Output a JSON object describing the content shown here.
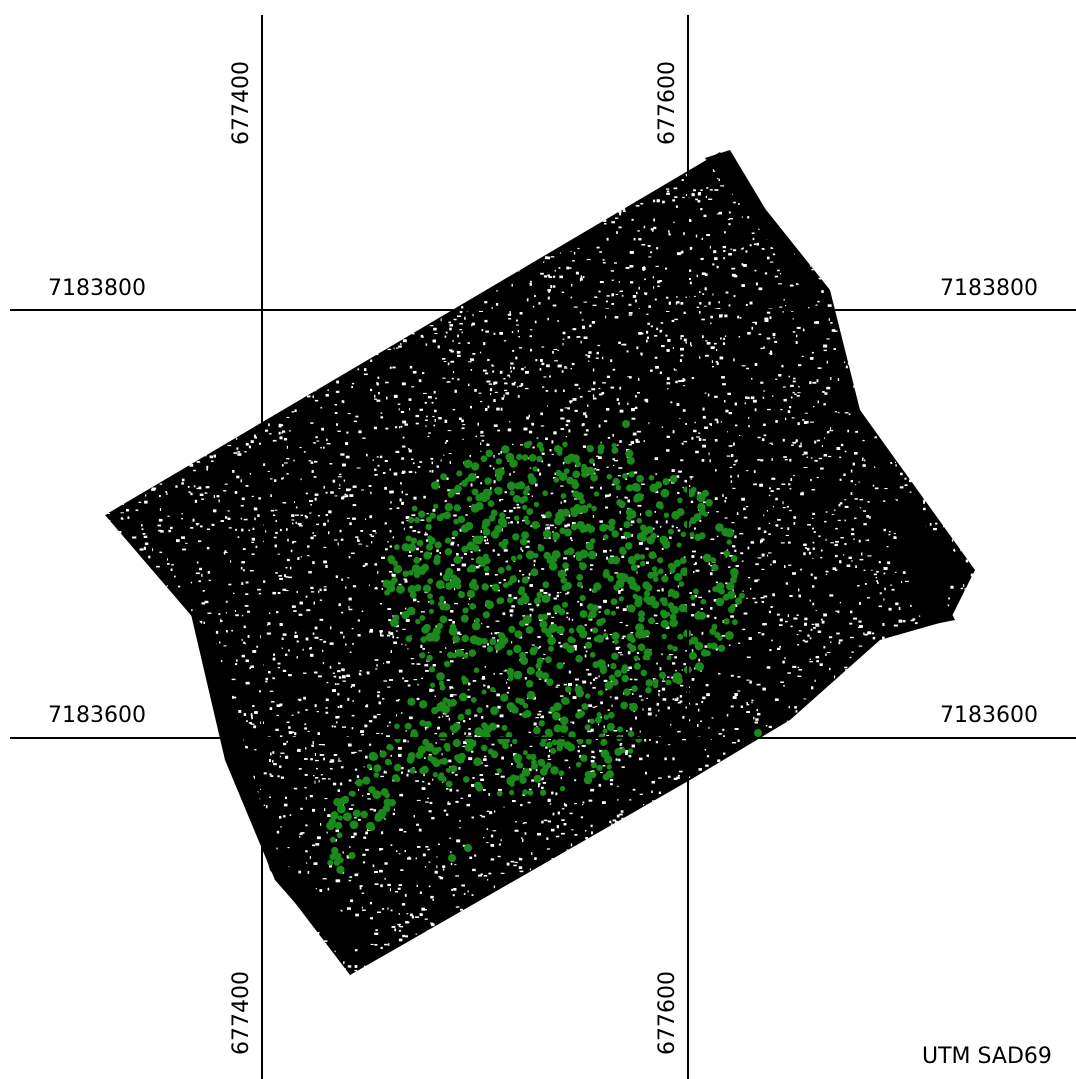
{
  "map": {
    "projection_label": "UTM  SAD69",
    "easting_lines": [
      {
        "value": "677400"
      },
      {
        "value": "677600"
      }
    ],
    "northing_lines": [
      {
        "value": "7183800"
      },
      {
        "value": "7183600"
      }
    ],
    "colors": {
      "background": "#ffffff",
      "grid": "#000000",
      "survey_pixels": "#000000",
      "survey_edge": "#000000",
      "highlight_points": "#1a8a1a"
    },
    "layers": [
      {
        "name": "survey-coverage",
        "style": "dense black pixel texture"
      },
      {
        "name": "highlighted-points",
        "style": "green dots"
      }
    ]
  }
}
